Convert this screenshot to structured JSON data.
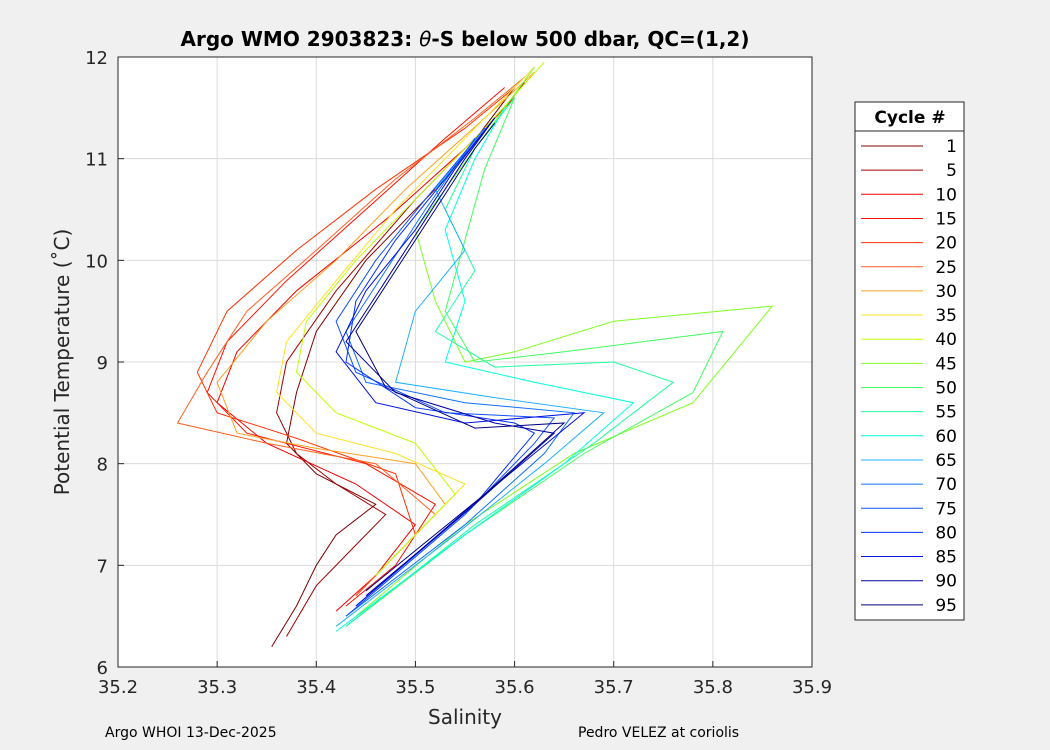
{
  "chart_data": {
    "type": "line",
    "title_prefix": "Argo WMO 2903823: ",
    "title_theta": "θ",
    "title_suffix": "-S below 500 dbar,  QC=(1,2)",
    "xlabel": "Salinity",
    "ylabel": "Potential Temperature (˚C)",
    "xlim": [
      35.2,
      35.9
    ],
    "ylim": [
      6,
      12
    ],
    "xticks": [
      "35.2",
      "35.3",
      "35.4",
      "35.5",
      "35.6",
      "35.7",
      "35.8",
      "35.9"
    ],
    "yticks": [
      "6",
      "7",
      "8",
      "9",
      "10",
      "11",
      "12"
    ],
    "grid": true,
    "legend": {
      "title": "Cycle #",
      "placement": "outside-right"
    },
    "series": [
      {
        "name": "1",
        "color": "#800000",
        "points": [
          [
            35.355,
            6.2
          ],
          [
            35.38,
            6.6
          ],
          [
            35.4,
            7.0
          ],
          [
            35.42,
            7.3
          ],
          [
            35.46,
            7.6
          ],
          [
            35.4,
            7.9
          ],
          [
            35.37,
            8.2
          ],
          [
            35.38,
            8.7
          ],
          [
            35.4,
            9.3
          ],
          [
            35.45,
            10.0
          ],
          [
            35.53,
            10.8
          ],
          [
            35.6,
            11.7
          ]
        ]
      },
      {
        "name": "5",
        "color": "#a00000",
        "points": [
          [
            35.37,
            6.3
          ],
          [
            35.4,
            6.8
          ],
          [
            35.44,
            7.2
          ],
          [
            35.47,
            7.5
          ],
          [
            35.42,
            7.8
          ],
          [
            35.38,
            8.1
          ],
          [
            35.36,
            8.5
          ],
          [
            35.37,
            9.0
          ],
          [
            35.42,
            9.7
          ],
          [
            35.5,
            10.6
          ],
          [
            35.59,
            11.5
          ],
          [
            35.61,
            11.75
          ]
        ]
      },
      {
        "name": "10",
        "color": "#f00000",
        "points": [
          [
            35.42,
            6.55
          ],
          [
            35.46,
            6.9
          ],
          [
            35.5,
            7.4
          ],
          [
            35.44,
            7.8
          ],
          [
            35.35,
            8.2
          ],
          [
            35.3,
            8.6
          ],
          [
            35.32,
            9.1
          ],
          [
            35.38,
            9.7
          ],
          [
            35.47,
            10.4
          ],
          [
            35.55,
            11.1
          ],
          [
            35.6,
            11.6
          ]
        ]
      },
      {
        "name": "15",
        "color": "#ff1000",
        "points": [
          [
            35.43,
            6.6
          ],
          [
            35.48,
            7.0
          ],
          [
            35.52,
            7.6
          ],
          [
            35.45,
            8.0
          ],
          [
            35.33,
            8.3
          ],
          [
            35.29,
            8.7
          ],
          [
            35.31,
            9.2
          ],
          [
            35.37,
            9.8
          ],
          [
            35.45,
            10.5
          ],
          [
            35.53,
            11.2
          ],
          [
            35.59,
            11.7
          ]
        ]
      },
      {
        "name": "20",
        "color": "#ff3000",
        "points": [
          [
            35.44,
            6.7
          ],
          [
            35.5,
            7.3
          ],
          [
            35.48,
            7.9
          ],
          [
            35.38,
            8.25
          ],
          [
            35.3,
            8.5
          ],
          [
            35.28,
            8.9
          ],
          [
            35.31,
            9.5
          ],
          [
            35.38,
            10.1
          ],
          [
            35.46,
            10.7
          ],
          [
            35.55,
            11.3
          ],
          [
            35.6,
            11.7
          ]
        ]
      },
      {
        "name": "25",
        "color": "#ff6020",
        "points": [
          [
            35.45,
            6.8
          ],
          [
            35.52,
            7.5
          ],
          [
            35.46,
            8.0
          ],
          [
            35.35,
            8.2
          ],
          [
            35.26,
            8.4
          ],
          [
            35.29,
            8.9
          ],
          [
            35.33,
            9.5
          ],
          [
            35.4,
            10.1
          ],
          [
            35.48,
            10.8
          ],
          [
            35.56,
            11.4
          ],
          [
            35.61,
            11.8
          ]
        ]
      },
      {
        "name": "30",
        "color": "#ffa020",
        "points": [
          [
            35.46,
            6.9
          ],
          [
            35.53,
            7.6
          ],
          [
            35.5,
            8.0
          ],
          [
            35.4,
            8.15
          ],
          [
            35.32,
            8.3
          ],
          [
            35.3,
            8.8
          ],
          [
            35.35,
            9.4
          ],
          [
            35.42,
            10.0
          ],
          [
            35.49,
            10.7
          ],
          [
            35.57,
            11.4
          ],
          [
            35.62,
            11.85
          ]
        ]
      },
      {
        "name": "35",
        "color": "#ffe020",
        "points": [
          [
            35.47,
            7.0
          ],
          [
            35.55,
            7.8
          ],
          [
            35.48,
            8.1
          ],
          [
            35.4,
            8.3
          ],
          [
            35.36,
            8.7
          ],
          [
            35.37,
            9.2
          ],
          [
            35.42,
            9.8
          ],
          [
            35.48,
            10.5
          ],
          [
            35.55,
            11.2
          ],
          [
            35.62,
            11.9
          ]
        ]
      },
      {
        "name": "40",
        "color": "#c0ff00",
        "points": [
          [
            35.46,
            6.9
          ],
          [
            35.54,
            7.7
          ],
          [
            35.5,
            8.2
          ],
          [
            35.42,
            8.5
          ],
          [
            35.38,
            8.9
          ],
          [
            35.39,
            9.4
          ],
          [
            35.44,
            10.0
          ],
          [
            35.5,
            10.6
          ],
          [
            35.57,
            11.3
          ],
          [
            35.63,
            11.95
          ]
        ]
      },
      {
        "name": "45",
        "color": "#80ff20",
        "points": [
          [
            35.44,
            6.5
          ],
          [
            35.55,
            7.4
          ],
          [
            35.66,
            8.1
          ],
          [
            35.78,
            8.6
          ],
          [
            35.86,
            9.55
          ],
          [
            35.7,
            9.4
          ],
          [
            35.6,
            9.1
          ],
          [
            35.55,
            9.0
          ],
          [
            35.52,
            9.6
          ],
          [
            35.5,
            10.3
          ],
          [
            35.56,
            11.1
          ],
          [
            35.62,
            11.9
          ]
        ]
      },
      {
        "name": "50",
        "color": "#40ff60",
        "points": [
          [
            35.43,
            6.4
          ],
          [
            35.55,
            7.3
          ],
          [
            35.67,
            8.1
          ],
          [
            35.78,
            8.7
          ],
          [
            35.81,
            9.3
          ],
          [
            35.65,
            9.1
          ],
          [
            35.56,
            9.0
          ],
          [
            35.53,
            9.5
          ],
          [
            35.55,
            10.2
          ],
          [
            35.57,
            10.9
          ],
          [
            35.6,
            11.6
          ]
        ]
      },
      {
        "name": "55",
        "color": "#20ffa0",
        "points": [
          [
            35.43,
            6.4
          ],
          [
            35.56,
            7.4
          ],
          [
            35.68,
            8.2
          ],
          [
            35.76,
            8.8
          ],
          [
            35.7,
            9.0
          ],
          [
            35.58,
            8.95
          ],
          [
            35.52,
            9.3
          ],
          [
            35.56,
            9.9
          ],
          [
            35.53,
            10.5
          ],
          [
            35.56,
            11.1
          ],
          [
            35.6,
            11.6
          ]
        ]
      },
      {
        "name": "60",
        "color": "#00ffe0",
        "points": [
          [
            35.42,
            6.35
          ],
          [
            35.55,
            7.3
          ],
          [
            35.65,
            8.0
          ],
          [
            35.72,
            8.6
          ],
          [
            35.62,
            8.8
          ],
          [
            35.53,
            9.0
          ],
          [
            35.55,
            9.6
          ],
          [
            35.53,
            10.3
          ],
          [
            35.56,
            11.0
          ],
          [
            35.59,
            11.5
          ]
        ]
      },
      {
        "name": "65",
        "color": "#20b0ff",
        "points": [
          [
            35.42,
            6.4
          ],
          [
            35.54,
            7.3
          ],
          [
            35.63,
            8.0
          ],
          [
            35.69,
            8.5
          ],
          [
            35.58,
            8.65
          ],
          [
            35.48,
            8.8
          ],
          [
            35.5,
            9.5
          ],
          [
            35.55,
            10.1
          ],
          [
            35.52,
            10.7
          ],
          [
            35.57,
            11.3
          ]
        ]
      },
      {
        "name": "70",
        "color": "#1070ff",
        "points": [
          [
            35.43,
            6.5
          ],
          [
            35.55,
            7.4
          ],
          [
            35.63,
            8.1
          ],
          [
            35.66,
            8.5
          ],
          [
            35.55,
            8.6
          ],
          [
            35.45,
            8.8
          ],
          [
            35.43,
            9.3
          ],
          [
            35.47,
            9.9
          ],
          [
            35.51,
            10.5
          ],
          [
            35.56,
            11.2
          ]
        ]
      },
      {
        "name": "75",
        "color": "#1050ff",
        "points": [
          [
            35.43,
            6.5
          ],
          [
            35.55,
            7.5
          ],
          [
            35.62,
            8.2
          ],
          [
            35.64,
            8.45
          ],
          [
            35.53,
            8.5
          ],
          [
            35.44,
            8.9
          ],
          [
            35.42,
            9.4
          ],
          [
            35.46,
            10.0
          ],
          [
            35.51,
            10.6
          ],
          [
            35.57,
            11.3
          ]
        ]
      },
      {
        "name": "80",
        "color": "#0030ff",
        "points": [
          [
            35.44,
            6.6
          ],
          [
            35.56,
            7.6
          ],
          [
            35.62,
            8.3
          ],
          [
            35.6,
            8.4
          ],
          [
            35.5,
            8.55
          ],
          [
            35.43,
            9.0
          ],
          [
            35.44,
            9.6
          ],
          [
            35.48,
            10.2
          ],
          [
            35.53,
            10.8
          ],
          [
            35.58,
            11.4
          ]
        ]
      },
      {
        "name": "85",
        "color": "#0010e0",
        "points": [
          [
            35.44,
            6.6
          ],
          [
            35.57,
            7.7
          ],
          [
            35.67,
            8.5
          ],
          [
            35.55,
            8.4
          ],
          [
            35.46,
            8.6
          ],
          [
            35.42,
            9.1
          ],
          [
            35.45,
            9.7
          ],
          [
            35.5,
            10.3
          ],
          [
            35.54,
            10.9
          ],
          [
            35.58,
            11.4
          ]
        ]
      },
      {
        "name": "90",
        "color": "#0000a0",
        "points": [
          [
            35.45,
            6.7
          ],
          [
            35.56,
            7.6
          ],
          [
            35.64,
            8.3
          ],
          [
            35.58,
            8.4
          ],
          [
            35.48,
            8.7
          ],
          [
            35.43,
            9.2
          ],
          [
            35.47,
            9.8
          ],
          [
            35.51,
            10.4
          ],
          [
            35.55,
            11.0
          ],
          [
            35.58,
            11.4
          ]
        ]
      },
      {
        "name": "95",
        "color": "#000080",
        "points": [
          [
            35.45,
            6.75
          ],
          [
            35.57,
            7.7
          ],
          [
            35.65,
            8.4
          ],
          [
            35.56,
            8.35
          ],
          [
            35.47,
            8.75
          ],
          [
            35.44,
            9.3
          ],
          [
            35.48,
            9.9
          ],
          [
            35.52,
            10.5
          ],
          [
            35.56,
            11.1
          ],
          [
            35.58,
            11.35
          ]
        ]
      }
    ]
  },
  "footer": {
    "left": "Argo WHOI 13-Dec-2025",
    "right": "Pedro VELEZ at coriolis"
  }
}
